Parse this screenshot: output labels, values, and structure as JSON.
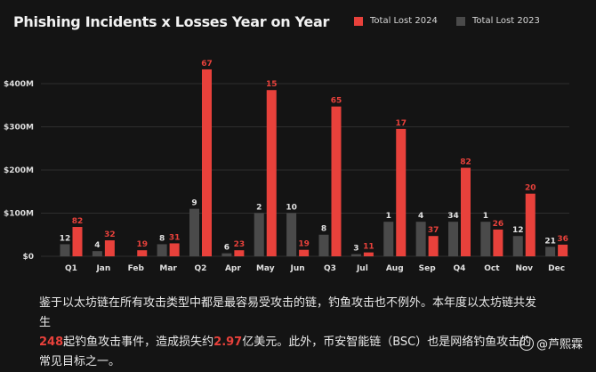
{
  "chart_data": {
    "type": "bar",
    "title": "Phishing Incidents x Losses Year on Year",
    "categories": [
      "Q1",
      "Jan",
      "Feb",
      "Mar",
      "Q2",
      "Apr",
      "May",
      "Jun",
      "Q3",
      "Jul",
      "Aug",
      "Sep",
      "Q4",
      "Oct",
      "Nov",
      "Dec"
    ],
    "series": [
      {
        "name": "Total Lost 2023",
        "color": "#4a4a4a",
        "values": [
          28,
          12,
          0,
          28,
          110,
          7,
          100,
          100,
          50,
          5,
          80,
          80,
          80,
          80,
          47,
          22
        ],
        "labels": [
          "12",
          "4",
          "",
          "8",
          "9",
          "6",
          "2",
          "10",
          "8",
          "3",
          "1",
          "4",
          "34",
          "1",
          "12",
          "21"
        ]
      },
      {
        "name": "Total Lost 2024",
        "color": "#e8413b",
        "values": [
          68,
          37,
          14,
          30,
          433,
          14,
          385,
          15,
          347,
          9,
          295,
          47,
          205,
          62,
          145,
          27
        ],
        "labels": [
          "82",
          "32",
          "19",
          "31",
          "67",
          "23",
          "15",
          "19",
          "65",
          "11",
          "17",
          "37",
          "82",
          "26",
          "20",
          "36"
        ]
      }
    ],
    "y_ticks": [
      0,
      100,
      200,
      300,
      400
    ],
    "y_tick_labels": [
      "$0",
      "$100M",
      "$200M",
      "$300M",
      "$400M"
    ],
    "ylim": [
      0,
      470
    ],
    "grid": true,
    "legend_position": "top-right"
  },
  "caption": {
    "line1": "鉴于以太坊链在所有攻击类型中都是最容易受攻击的链，钓鱼攻击也不例外。本年度以太坊链共发生",
    "num1": "248",
    "part2a": "起钓鱼攻击事件，造成损失约",
    "num2": "2.97",
    "part2b": "亿美元。此外，币安智能链（BSC）也是网络钓鱼攻击的常见目标之一。"
  },
  "watermark": {
    "text": "@芦熙霖",
    "icon": "circle-logo-icon"
  }
}
